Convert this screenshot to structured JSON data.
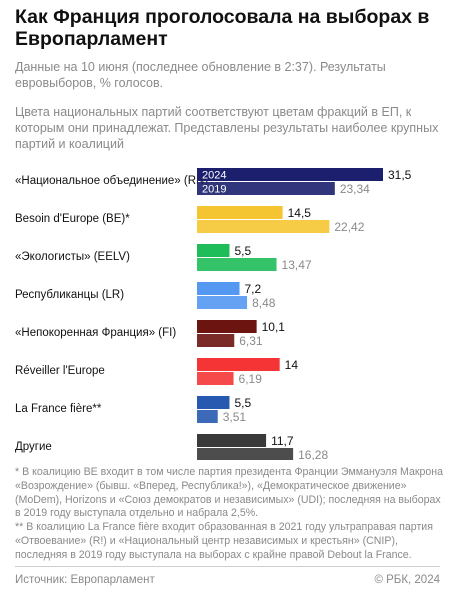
{
  "header": {
    "title": "Как Франция проголосовала на выборах в Европарламент",
    "subtitle_1": "Данные на 10 июня (последнее обновление в 2:37). Результаты евровыборов, % голосов.",
    "subtitle_2": "Цвета национальных партий соответствуют цветам фракций в ЕП, к которым они принадлежат. Представлены результаты наиболее крупных партий и коалиций"
  },
  "chart_data": {
    "type": "bar",
    "orientation": "horizontal",
    "categories": [
      "«Национальное объединение» (RN)",
      "Besoin d'Europe (BE)*",
      "«Экологисты» (EELV)",
      "Республиканцы (LR)",
      "«Непокоренная Франция» (FI)",
      "Réveiller l'Europe",
      "La France fière**",
      "Другие"
    ],
    "series": [
      {
        "name": "2024",
        "values": [
          31.5,
          14.5,
          5.5,
          7.2,
          10.1,
          14,
          5.5,
          11.7
        ]
      },
      {
        "name": "2019",
        "values": [
          23.34,
          22.42,
          13.47,
          8.48,
          6.31,
          6.19,
          3.51,
          16.28
        ]
      }
    ],
    "value_labels": {
      "2024": [
        "31,5",
        "14,5",
        "5,5",
        "7,2",
        "10,1",
        "14",
        "5,5",
        "11,7"
      ],
      "2019": [
        "23,34",
        "22,42",
        "13,47",
        "8,48",
        "6,31",
        "6,19",
        "3,51",
        "16,28"
      ]
    },
    "colors": [
      "#1b1f6e",
      "#f5c531",
      "#1ebd59",
      "#5598f2",
      "#6b1410",
      "#f53535",
      "#2759b0",
      "#3a3a3a"
    ],
    "legend_placement": "inside-first-bars",
    "grid": false,
    "xlim": [
      0,
      31.5
    ]
  },
  "footnotes": [
    "* В коалицию BE входит в том числе партия президента Франции Эммануэля Макрона «Возрождение» (бывш. «Вперед, Республика!»), «Демократическое движение» (MoDem), Horizons и «Союз демократов и независимых» (UDI); последняя на выборах в 2019 году выступала отдельно и набрала 2,5%.",
    "** В коалицию La France fière входит образованная в 2021 году ультраправая партия «Отвоевание» (R!) и «Национальный центр независимых и крестьян» (CNIP), последняя в 2019 году выступала на выборах с крайне правой Debout la France."
  ],
  "footer": {
    "source": "Источник: Европарламент",
    "copyright": "© РБК, 2024"
  }
}
